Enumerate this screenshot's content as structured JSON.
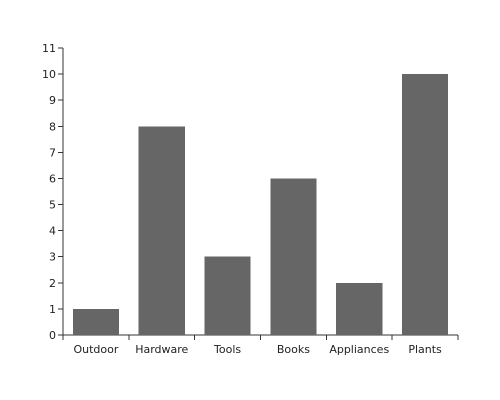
{
  "chart_data": {
    "type": "bar",
    "categories": [
      "Outdoor",
      "Hardware",
      "Tools",
      "Books",
      "Appliances",
      "Plants"
    ],
    "values": [
      1,
      8,
      3,
      6,
      2,
      10
    ],
    "title": "",
    "xlabel": "",
    "ylabel": "",
    "ylim": [
      0,
      11
    ],
    "yticks": [
      0,
      1,
      2,
      3,
      4,
      5,
      6,
      7,
      8,
      9,
      10,
      11
    ],
    "grid": false,
    "legend": "none",
    "bar_color": "#666666",
    "axis_color": "#333333"
  }
}
